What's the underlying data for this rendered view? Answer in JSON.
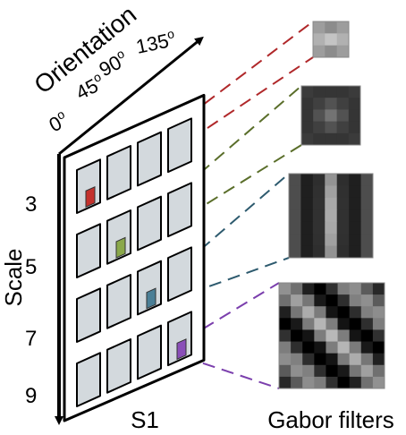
{
  "axes": {
    "orientation_label": "Orientation",
    "scale_label": "Scale",
    "orientation_ticks": [
      {
        "deg": "0",
        "sup": "o"
      },
      {
        "deg": "45",
        "sup": "o"
      },
      {
        "deg": "90",
        "sup": "o"
      },
      {
        "deg": "135",
        "sup": "o"
      }
    ],
    "scale_ticks": [
      "3",
      "5",
      "7",
      "9"
    ]
  },
  "grid": {
    "label": "S1",
    "rows": 4,
    "cols": 4,
    "cell_color": "#d3d9dd",
    "highlights": [
      {
        "row": 0,
        "col": 0,
        "color": "#c4322d",
        "line_color": "#b0282a",
        "filter": 0
      },
      {
        "row": 1,
        "col": 1,
        "color": "#8aa84a",
        "line_color": "#5a6e2a",
        "filter": 1
      },
      {
        "row": 2,
        "col": 2,
        "color": "#4b7f96",
        "line_color": "#2d5a6e",
        "filter": 2
      },
      {
        "row": 3,
        "col": 3,
        "color": "#8a4fb8",
        "line_color": "#7b3fad",
        "filter": 3
      }
    ]
  },
  "filters": {
    "label": "Gabor filters",
    "items": [
      {
        "name": "scale-3",
        "n": 3,
        "pattern": "horizontal"
      },
      {
        "name": "scale-5",
        "n": 5,
        "pattern": "center-blob"
      },
      {
        "name": "scale-7",
        "n": 7,
        "pattern": "vertical"
      },
      {
        "name": "scale-9",
        "n": 9,
        "pattern": "diagonal"
      }
    ]
  }
}
